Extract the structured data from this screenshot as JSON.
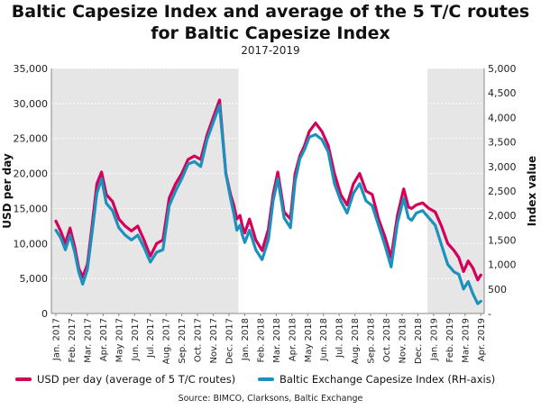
{
  "colors": {
    "usd": "#d4005a",
    "index": "#1a92bd",
    "shade": "#e6e6e6"
  },
  "chart_data": {
    "type": "line",
    "title": "Baltic Capesize Index and average of the 5 T/C routes for Baltic Capesize Index",
    "title_lines": [
      "Baltic Capesize Index and average of the 5 T/C routes",
      "for Baltic Capesize Index"
    ],
    "subtitle": "2017-2019",
    "ylabel": "USD per day",
    "y2label": "Index value",
    "ylim": [
      0,
      35000
    ],
    "y2lim": [
      0,
      5000
    ],
    "yticks": [
      "0",
      "5,000",
      "10,000",
      "15,000",
      "20,000",
      "25,000",
      "30,000",
      "35,000"
    ],
    "y2ticks": [
      "-",
      "500",
      "1,000",
      "1,500",
      "2,000",
      "2,500",
      "3,000",
      "3,500",
      "4,000",
      "4,500",
      "5,000"
    ],
    "xlabels": [
      "Jan. 2017",
      "Feb. 2017",
      "Mar. 2017",
      "Apr. 2017",
      "May 2017",
      "Jun. 2017",
      "Jul. 2017",
      "Aug. 2017",
      "Sep. 2017",
      "Oct. 2017",
      "Nov. 2017",
      "Dec. 2017",
      "Jan. 2018",
      "Feb. 2018",
      "Mar. 2018",
      "Apr. 2018",
      "May 2018",
      "Jun. 2018",
      "Jul. 2018",
      "Aug. 2018",
      "Sep. 2018",
      "Oct. 2018",
      "Nov. 2018",
      "Dec. 2018",
      "Jan. 2019",
      "Feb. 2019",
      "Mar. 2019",
      "Apr. 2019"
    ],
    "shaded_years": [
      "2017",
      "2019"
    ],
    "grid": "horizontal",
    "legend_position": "bottom",
    "series": [
      {
        "name": "USD per day (average of 5 T/C routes)",
        "axis": "left",
        "x": [
          0,
          0.3,
          0.6,
          0.9,
          1.2,
          1.45,
          1.7,
          2.0,
          2.3,
          2.6,
          2.9,
          3.2,
          3.6,
          4.0,
          4.4,
          4.8,
          5.2,
          5.6,
          6.0,
          6.4,
          6.8,
          7.2,
          7.6,
          8.0,
          8.4,
          8.8,
          9.2,
          9.6,
          10.0,
          10.4,
          10.8,
          11.1,
          11.3,
          11.5,
          11.7,
          11.85,
          12.0,
          12.3,
          12.7,
          13.1,
          13.5,
          13.8,
          14.1,
          14.5,
          14.9,
          15.2,
          15.5,
          15.8,
          16.1,
          16.5,
          16.9,
          17.3,
          17.7,
          18.1,
          18.5,
          18.9,
          19.3,
          19.7,
          20.1,
          20.5,
          20.9,
          21.3,
          21.7,
          22.1,
          22.4,
          22.6,
          22.9,
          23.3,
          23.7,
          24.1,
          24.5,
          24.9,
          25.3,
          25.6,
          25.9,
          26.2,
          26.5,
          26.8,
          27.0
        ],
        "y": [
          13200,
          11800,
          10000,
          12200,
          9500,
          6500,
          5200,
          7000,
          12500,
          18500,
          20200,
          17000,
          16000,
          13500,
          12500,
          11800,
          12500,
          10500,
          8200,
          10000,
          10500,
          16500,
          18500,
          20000,
          22000,
          22500,
          22000,
          25500,
          28000,
          30500,
          20000,
          17000,
          15500,
          13500,
          14000,
          12500,
          11500,
          13500,
          10500,
          9000,
          12000,
          17000,
          20200,
          14500,
          13500,
          20000,
          22500,
          24000,
          26000,
          27200,
          26000,
          24000,
          20000,
          17000,
          15500,
          18500,
          20000,
          17500,
          17000,
          13500,
          11000,
          8000,
          14000,
          17800,
          15200,
          15000,
          15500,
          15800,
          15000,
          14500,
          12500,
          10000,
          9000,
          8000,
          6000,
          7500,
          6500,
          4800,
          5500
        ]
      },
      {
        "name": "Baltic Exchange Capesize Index (RH-axis)",
        "axis": "right",
        "x": [
          0,
          0.3,
          0.6,
          0.9,
          1.2,
          1.45,
          1.7,
          2.0,
          2.3,
          2.6,
          2.9,
          3.2,
          3.6,
          4.0,
          4.4,
          4.8,
          5.2,
          5.6,
          6.0,
          6.4,
          6.8,
          7.2,
          7.6,
          8.0,
          8.4,
          8.8,
          9.2,
          9.6,
          10.0,
          10.4,
          10.8,
          11.1,
          11.3,
          11.5,
          11.7,
          11.85,
          12.0,
          12.3,
          12.7,
          13.1,
          13.5,
          13.8,
          14.1,
          14.5,
          14.9,
          15.2,
          15.5,
          15.8,
          16.1,
          16.5,
          16.9,
          17.3,
          17.7,
          18.1,
          18.5,
          18.9,
          19.3,
          19.7,
          20.1,
          20.5,
          20.9,
          21.3,
          21.7,
          22.1,
          22.4,
          22.6,
          22.9,
          23.3,
          23.7,
          24.1,
          24.5,
          24.9,
          25.3,
          25.6,
          25.9,
          26.2,
          26.5,
          26.8,
          27.0
        ],
        "y": [
          1700,
          1550,
          1300,
          1600,
          1250,
          850,
          600,
          900,
          1650,
          2450,
          2750,
          2250,
          2100,
          1750,
          1600,
          1500,
          1600,
          1350,
          1050,
          1250,
          1300,
          2200,
          2500,
          2750,
          3050,
          3100,
          3000,
          3550,
          3900,
          4250,
          2850,
          2350,
          2050,
          1700,
          1800,
          1600,
          1450,
          1700,
          1300,
          1100,
          1500,
          2300,
          2750,
          1950,
          1750,
          2700,
          3150,
          3350,
          3600,
          3650,
          3550,
          3300,
          2650,
          2300,
          2050,
          2450,
          2650,
          2300,
          2200,
          1800,
          1400,
          950,
          1850,
          2350,
          1950,
          1900,
          2050,
          2100,
          1950,
          1800,
          1400,
          1000,
          850,
          800,
          500,
          650,
          400,
          200,
          250
        ]
      }
    ]
  },
  "legend": {
    "usd_label": "USD per day (average of 5 T/C routes)",
    "index_label": "Baltic Exchange Capesize Index (RH-axis)"
  },
  "source": "Source: BIMCO, Clarksons, Baltic Exchange"
}
